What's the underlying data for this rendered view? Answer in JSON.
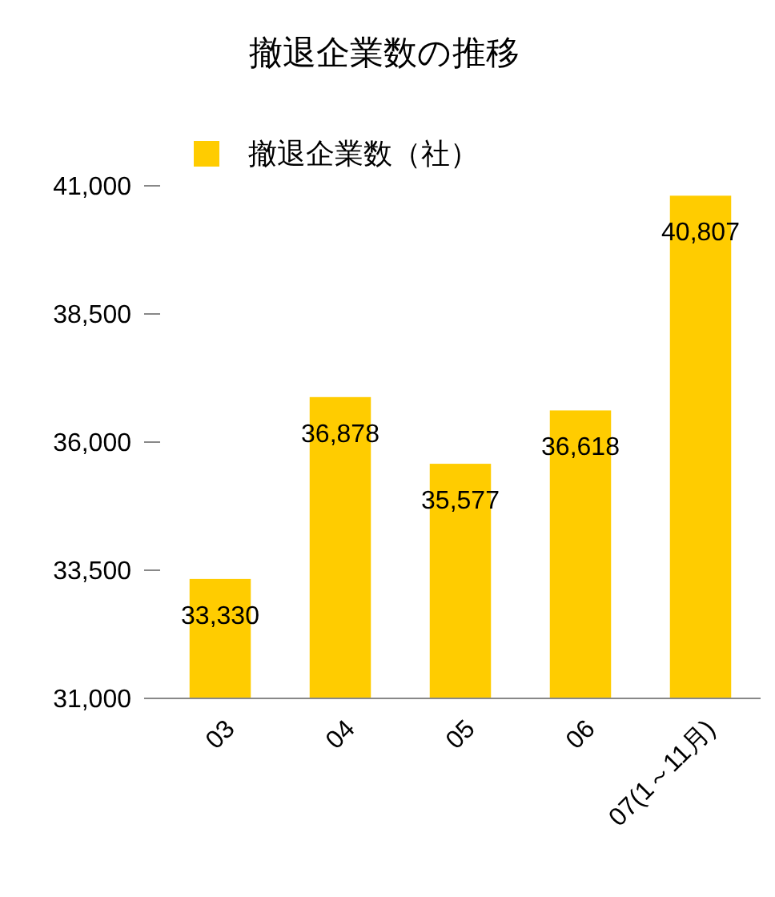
{
  "chart_data": {
    "type": "bar",
    "title": "撤退企業数の推移",
    "categories": [
      "03",
      "04",
      "05",
      "06",
      "07(1～11月)"
    ],
    "series": [
      {
        "name": "撤退企業数（社）",
        "color": "#ffcc00",
        "values": [
          33330,
          36878,
          35577,
          36618,
          40807
        ]
      }
    ],
    "value_labels": [
      "33,330",
      "36,878",
      "35,577",
      "36,618",
      "40,807"
    ],
    "ylim": [
      31000,
      41000
    ],
    "yticks": [
      {
        "value": 31000,
        "label": "31,000"
      },
      {
        "value": 33500,
        "label": "33,500"
      },
      {
        "value": 36000,
        "label": "36,000"
      },
      {
        "value": 38500,
        "label": "38,500"
      },
      {
        "value": 41000,
        "label": "41,000"
      }
    ],
    "grid": false,
    "legend": "top"
  }
}
